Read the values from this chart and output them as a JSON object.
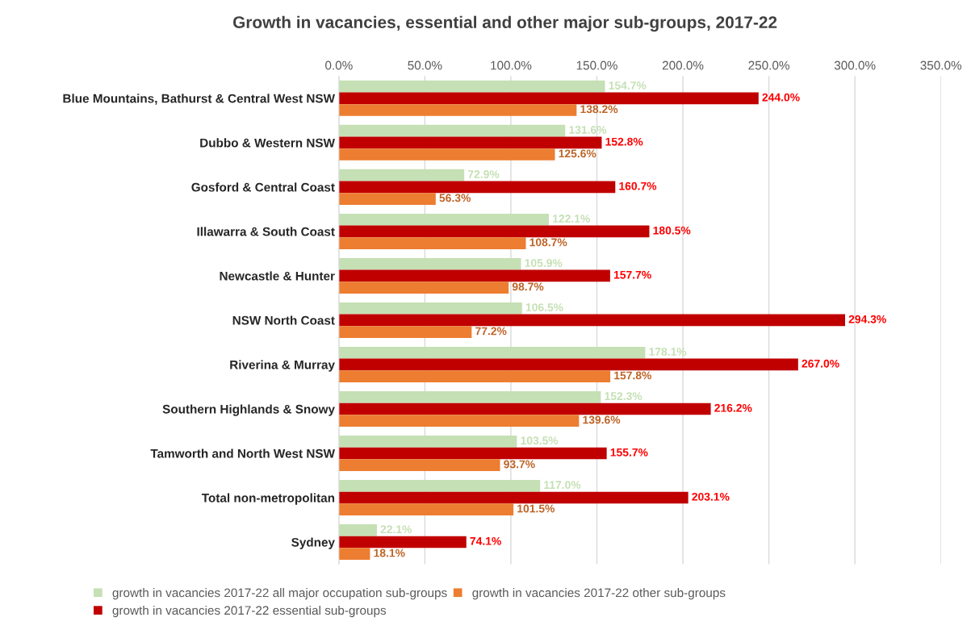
{
  "chart_data": {
    "type": "bar",
    "orientation": "horizontal",
    "title": "Growth in vacancies, essential and other major sub-groups, 2017-22",
    "categories": [
      "Blue Mountains, Bathurst & Central West NSW",
      "Dubbo & Western NSW",
      "Gosford & Central Coast",
      "Illawarra & South Coast",
      "Newcastle & Hunter",
      "NSW North Coast",
      "Riverina & Murray",
      "Southern Highlands & Snowy",
      "Tamworth and North West NSW",
      "Total non-metropolitan",
      "Sydney"
    ],
    "series": [
      {
        "name": "growth in vacancies 2017-22 all major occupation sub-groups",
        "color": "#c5e0b4",
        "values": [
          154.7,
          131.6,
          72.9,
          122.1,
          105.9,
          106.5,
          178.1,
          152.3,
          103.5,
          117.0,
          22.1
        ],
        "value_labels": [
          "154.7%",
          "131.6%",
          "72.9%",
          "122.1%",
          "105.9%",
          "106.5%",
          "178.1%",
          "152.3%",
          "103.5%",
          "117.0%",
          "22.1%"
        ]
      },
      {
        "name": "growth in vacancies 2017-22 essential sub-groups",
        "color": "#c00000",
        "values": [
          244.0,
          152.8,
          160.7,
          180.5,
          157.7,
          294.3,
          267.0,
          216.2,
          155.7,
          203.1,
          74.1
        ],
        "value_labels": [
          "244.0%",
          "152.8%",
          "160.7%",
          "180.5%",
          "157.7%",
          "294.3%",
          "267.0%",
          "216.2%",
          "155.7%",
          "203.1%",
          "74.1%"
        ]
      },
      {
        "name": "growth in vacancies 2017-22 other sub-groups",
        "color": "#ed7d31",
        "values": [
          138.2,
          125.6,
          56.3,
          108.7,
          98.7,
          77.2,
          157.8,
          139.6,
          93.7,
          101.5,
          18.1
        ],
        "value_labels": [
          "138.2%",
          "125.6%",
          "56.3%",
          "108.7%",
          "98.7%",
          "77.2%",
          "157.8%",
          "139.6%",
          "93.7%",
          "101.5%",
          "18.1%"
        ]
      }
    ],
    "xlim": [
      0,
      350
    ],
    "xticks": [
      {
        "value": 0,
        "label": "0.0%"
      },
      {
        "value": 50,
        "label": "50.0%"
      },
      {
        "value": 100,
        "label": "100.0%"
      },
      {
        "value": 150,
        "label": "150.0%"
      },
      {
        "value": 200,
        "label": "200.0%"
      },
      {
        "value": 250,
        "label": "250.0%"
      },
      {
        "value": 300,
        "label": "300.0%"
      },
      {
        "value": 350,
        "label": "350.0%"
      }
    ],
    "grid": "x",
    "legend": "bottom"
  }
}
